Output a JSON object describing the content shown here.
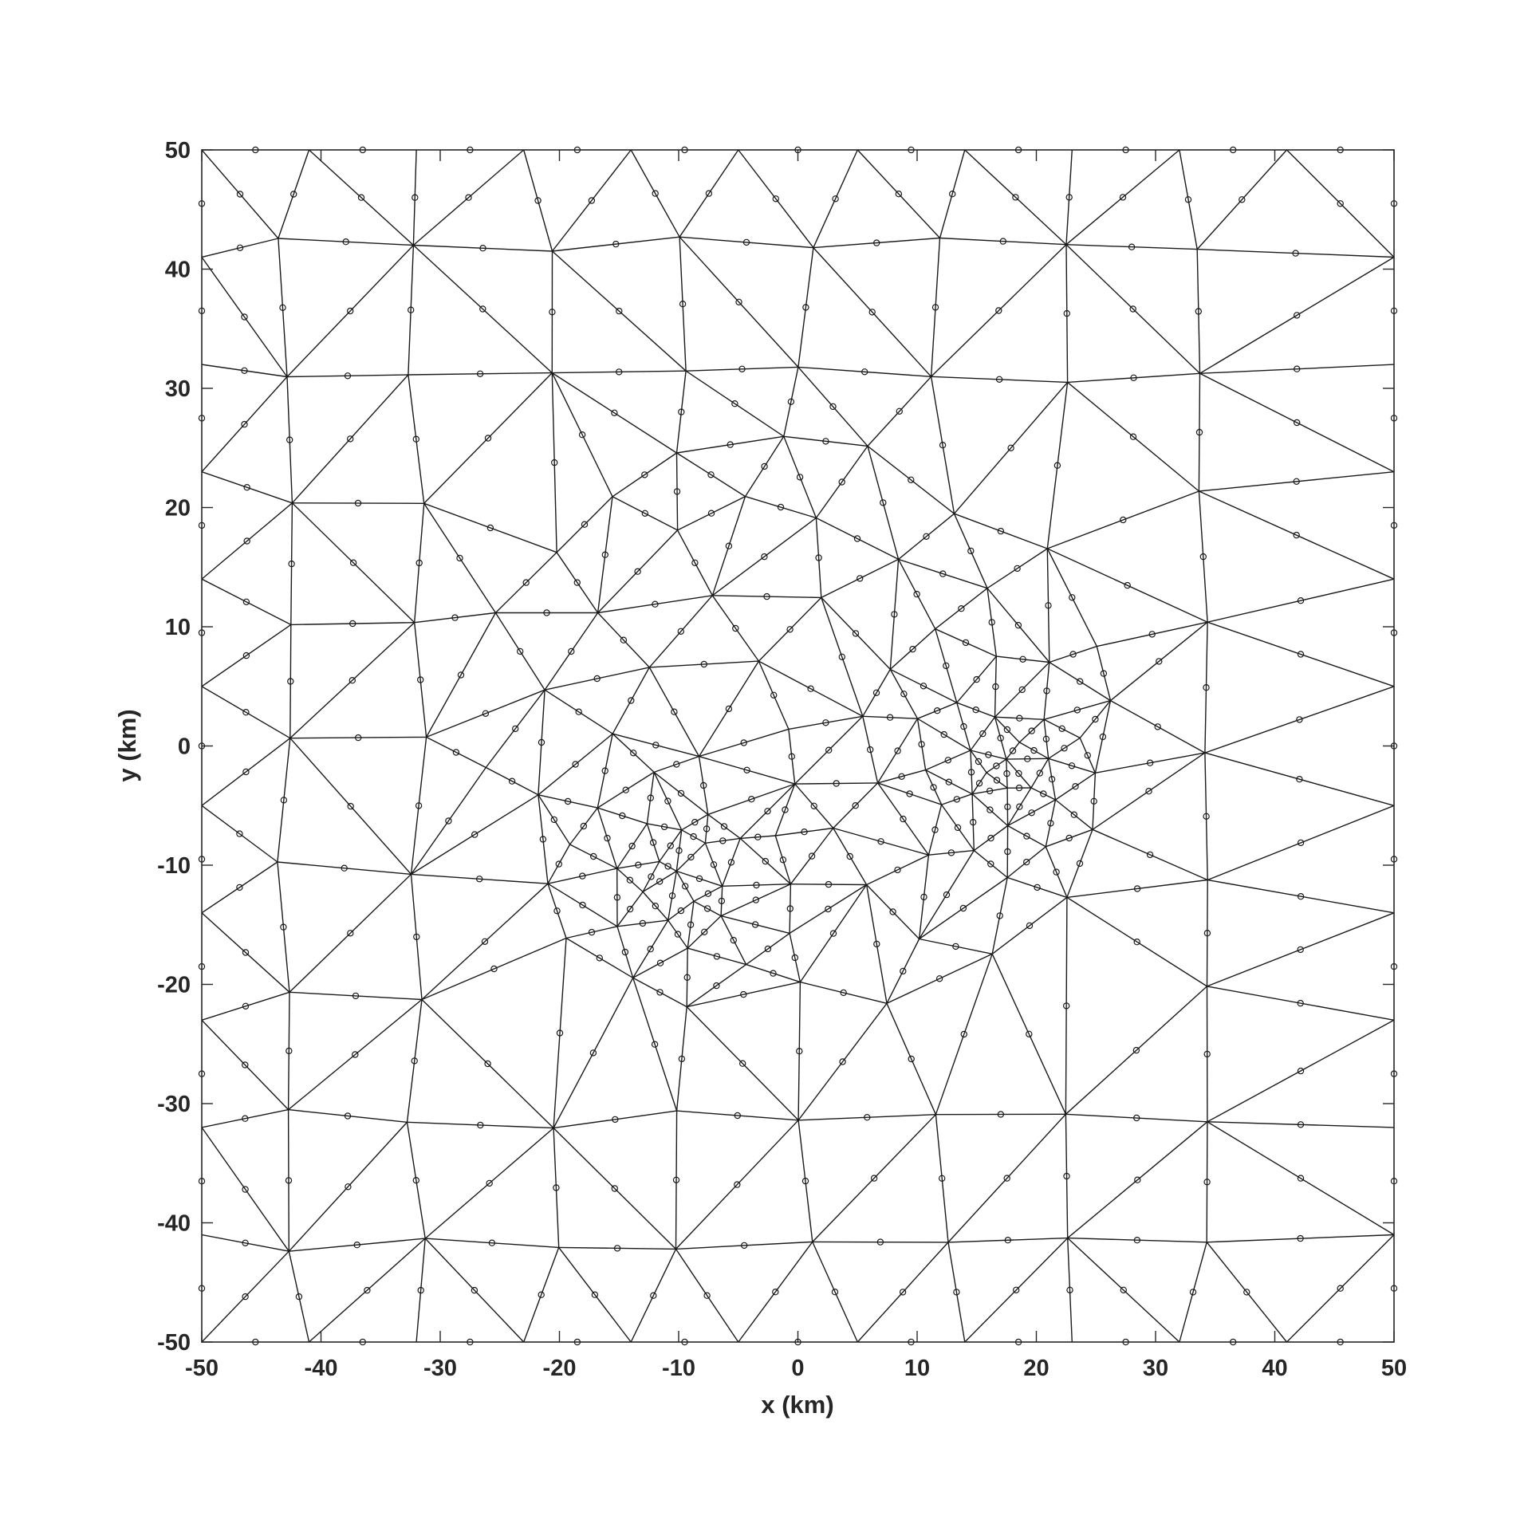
{
  "figure": {
    "type": "triangular finite-element mesh",
    "xlabel": "x (km)",
    "ylabel": "y (km)",
    "xlim": [
      -50,
      50
    ],
    "ylim": [
      -50,
      50
    ],
    "xticks": [
      "-50",
      "-40",
      "-30",
      "-20",
      "-10",
      "0",
      "10",
      "20",
      "30",
      "40",
      "50"
    ],
    "yticks": [
      "50",
      "40",
      "30",
      "20",
      "10",
      "0",
      "-10",
      "-20",
      "-30",
      "-40",
      "-50"
    ],
    "grid": false,
    "mesh": {
      "element": "quadratic triangle",
      "refined_regions": [
        {
          "description": "fine mesh around",
          "center_km": [
            -10,
            -10
          ]
        },
        {
          "description": "fine mesh around",
          "center_km": [
            17,
            -2
          ]
        }
      ],
      "refined_extent_km": {
        "x": [
          -27,
          28
        ],
        "y": [
          -22,
          27
        ]
      },
      "coarse_spacing_km": 10,
      "line_color": "#1a1a1a",
      "midside_marker": "circle"
    }
  }
}
